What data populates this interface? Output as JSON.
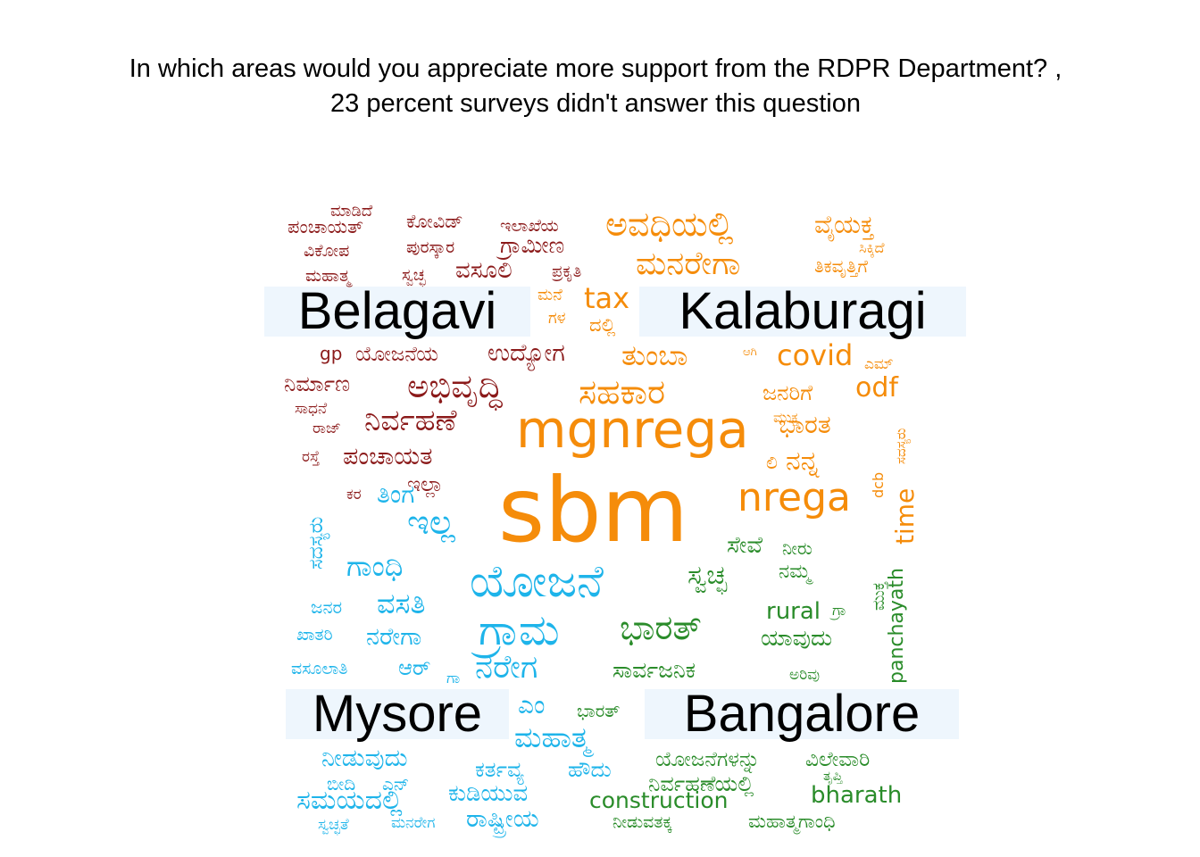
{
  "title": {
    "line1": "In which areas would you appreciate more support from the RDPR Department? ,",
    "line2": "23  percent surveys didn't answer this question"
  },
  "colors": {
    "red": "#8b1a1a",
    "orange": "#f58c0a",
    "blue": "#1eb4ea",
    "green": "#2a8c2a",
    "region_box": "#eef6fd"
  },
  "regions": {
    "belagavi": "Belagavi",
    "kalaburagi": "Kalaburagi",
    "mysore": "Mysore",
    "bangalore": "Bangalore"
  },
  "words": {
    "madide": "ಮಾಡಿದೆ",
    "panchayat_k": "ಪಂಚಾಯತ್",
    "covid_k": "ಕೋವಿಡ್",
    "ilakheya": "ಇಲಾಖೆಯ",
    "vikopa": "ವಿಕೋಪ",
    "puraskara": "ಪುರಸ್ಕಾರ",
    "grameena": "ಗ್ರಾಮೀಣ",
    "mahatma_small": "ಮಹಾತ್ಮ",
    "swachha_small": "ಸ್ವಚ್ಛ",
    "vasooli": "ವಸೂಲಿ",
    "prakruthi": "ಪ್ರಕೃತಿ",
    "avadhiyalli": "ಅವಧಿಯಲ್ಲಿ",
    "vaiyakthika": "ವೈಯಕ್ತ",
    "sikkide": "ಸಿಕ್ಕಿದೆ",
    "manarega": "ಮನರೇಗಾ",
    "thikavrutthige": "ತಿಕವೃತ್ತಿಗೆ",
    "mane": "ಮನೆ",
    "gala": "ಗಳ",
    "tax": "tax",
    "dali": "ದಲ್ಲಿ",
    "gp": "gp",
    "yojaneya": "ಯೋಜನೆಯ",
    "udyoga": "ಉದ್ಯೋಗ",
    "thumba": "ತುಂಬಾ",
    "aagi": "ಆಗಿ",
    "covid": "covid",
    "em": "ಎಮ್",
    "nirmana": "ನಿರ್ಮಾಣ",
    "abhivruddhi": "ಅಭಿವೃದ್ಧಿ",
    "sahakara": "ಸಹಕಾರ",
    "janarige": "ಜನರಿಗೆ",
    "odf": "odf",
    "sadhane": "ಸಾಧನೆ",
    "raj": "ರಾಜ್",
    "nirvahane": "ನಿರ್ವಹಣೆ",
    "mgnrega": "mgnrega",
    "bharatha": "ಭಾರತ",
    "mukti": "ಮುಕ್ತ",
    "raste": "ರಸ್ತೆ",
    "panchayatha": "ಪಂಚಾಯತ",
    "nanna": "ನನ್ನ",
    "li": "ಲಿ",
    "dcb": "dcb",
    "time": "time",
    "ila": "ಇಲ್ಲಾ",
    "kara": "ಕರ",
    "sadasyaru": "ಸದಸ್ಯರು",
    "sbm": "sbm",
    "nrega": "nrega",
    "thinga": "ತಿಂಗ",
    "illa": "ಇಲ್ಲ",
    "seve": "ಸೇವೆ",
    "neeru": "ನೀರು",
    "gandhi": "ಗಾಂಧಿ",
    "yojane": "ಯೋಜನೆ",
    "swachha": "ಸ್ವಚ್ಛ",
    "namma": "ನಮ್ಮ",
    "panchayath": "panchayath",
    "janara": "ಜನರ",
    "vasathi": "ವಸತಿ",
    "rural": "rural",
    "gra": "ಗ್ರಾ",
    "khaatri": "ಖಾತರಿ",
    "narega_aa": "ನರೇಗಾ",
    "grama": "ಗ್ರಾಮ",
    "bharath_k": "ಭಾರತ್",
    "yavudu": "ಯಾವುದು",
    "vasoolathi": "ವಸೂಲಾತಿ",
    "aar": "ಆರ್",
    "gaa": "ಗಾ",
    "narega": "ನರೇಗ",
    "sarvajanika": "ಸಾರ್ವಜನಿಕ",
    "arivu": "ಅರಿವು",
    "em_big": "ಎಂ",
    "bharath_small": "ಭಾರತ್",
    "mahatma": "ಮಹಾತ್ಮ",
    "needuvudu": "ನೀಡುವುದು",
    "karthavya": "ಕರ್ತವ್ಯ",
    "houdu": "ಹೌದು",
    "yojanegalannu": "ಯೋಜನೆಗಳನ್ನು",
    "vilevari": "ವಿಲೇವಾರಿ",
    "thrupti": "ತೃಪ್ತಿ",
    "beedi": "ಬೀದಿ",
    "en": "ಎನ್",
    "kudiyuva": "ಕುಡಿಯುವ",
    "construction": "construction",
    "nirvahaneyalli": "ನಿರ್ವಹಣೆಯಲ್ಲಿ",
    "bharath": "bharath",
    "samayadalli": "ಸಮಯದಲ್ಲಿ",
    "swachhathe": "ಸ್ವಚ್ಛತೆ",
    "manarega_small": "ಮನರೇಗ",
    "rashtriya": "ರಾಷ್ಟ್ರೀಯ",
    "needuvathakka": "ನೀಡುವತಕ್ಕ",
    "mahatmagandhi": "ಮಹಾತ್ಮಗಾಂಧಿ"
  }
}
